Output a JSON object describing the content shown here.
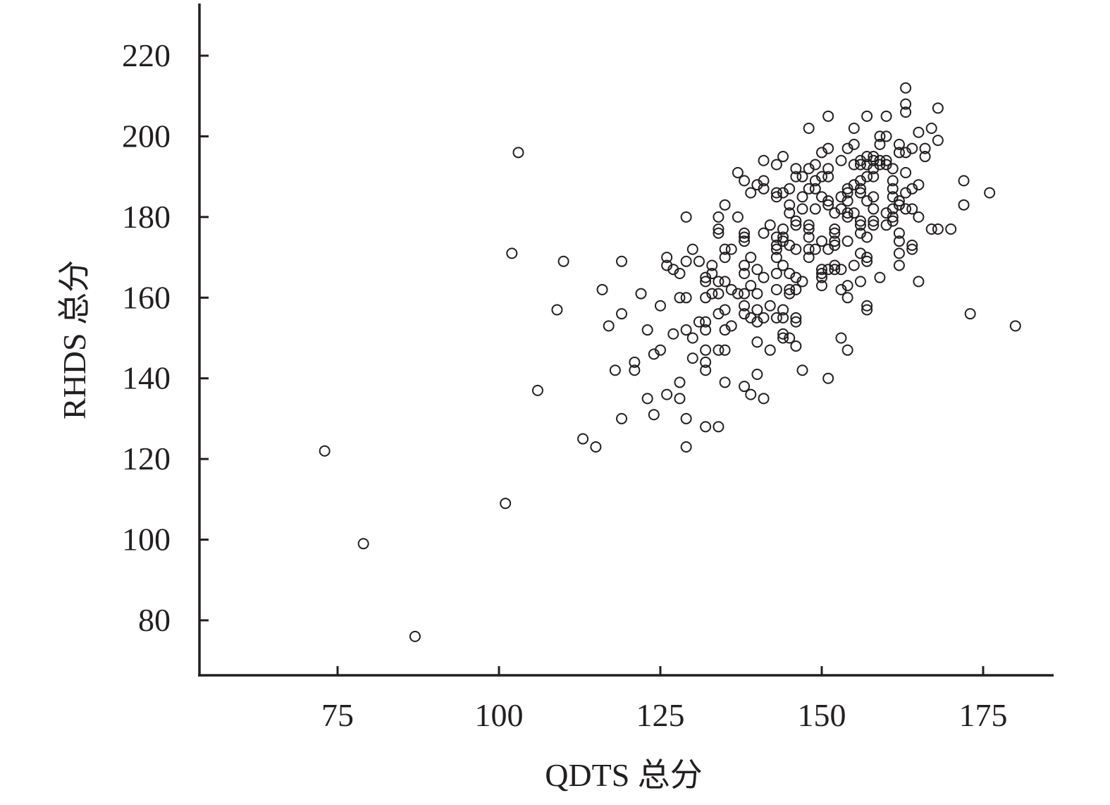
{
  "chart_data": {
    "type": "scatter",
    "title": "",
    "xlabel": "QDTS 总分",
    "ylabel": "RHDS 总分",
    "xlim": [
      53,
      187
    ],
    "ylim": [
      67,
      233
    ],
    "xticks": [
      75,
      100,
      125,
      150,
      175
    ],
    "yticks": [
      80,
      100,
      120,
      140,
      160,
      180,
      200,
      220
    ],
    "grid": false,
    "legend": "none",
    "marker": "open-circle",
    "color": "#231f20",
    "series": [
      {
        "points": [
          [
            73,
            122
          ],
          [
            79,
            99
          ],
          [
            87,
            76
          ],
          [
            101,
            109
          ],
          [
            102,
            171
          ],
          [
            103,
            196
          ],
          [
            106,
            137
          ],
          [
            109,
            157
          ],
          [
            110,
            169
          ],
          [
            113,
            125
          ],
          [
            115,
            123
          ],
          [
            116,
            162
          ],
          [
            117,
            153
          ],
          [
            118,
            142
          ],
          [
            119,
            169
          ],
          [
            119,
            156
          ],
          [
            119,
            130
          ],
          [
            121,
            144
          ],
          [
            121,
            142
          ],
          [
            122,
            161
          ],
          [
            123,
            152
          ],
          [
            123,
            135
          ],
          [
            124,
            146
          ],
          [
            124,
            131
          ],
          [
            125,
            158
          ],
          [
            125,
            147
          ],
          [
            126,
            170
          ],
          [
            126,
            168
          ],
          [
            126,
            136
          ],
          [
            127,
            167
          ],
          [
            127,
            151
          ],
          [
            128,
            166
          ],
          [
            128,
            160
          ],
          [
            128,
            139
          ],
          [
            128,
            135
          ],
          [
            129,
            180
          ],
          [
            129,
            169
          ],
          [
            129,
            160
          ],
          [
            129,
            152
          ],
          [
            129,
            130
          ],
          [
            129,
            123
          ],
          [
            130,
            172
          ],
          [
            130,
            150
          ],
          [
            130,
            145
          ],
          [
            131,
            169
          ],
          [
            131,
            154
          ],
          [
            132,
            165
          ],
          [
            132,
            164
          ],
          [
            132,
            160
          ],
          [
            132,
            154
          ],
          [
            132,
            152
          ],
          [
            132,
            147
          ],
          [
            132,
            144
          ],
          [
            132,
            142
          ],
          [
            132,
            128
          ],
          [
            133,
            168
          ],
          [
            133,
            166
          ],
          [
            133,
            161
          ],
          [
            134,
            180
          ],
          [
            134,
            177
          ],
          [
            134,
            176
          ],
          [
            134,
            164
          ],
          [
            134,
            161
          ],
          [
            134,
            156
          ],
          [
            134,
            147
          ],
          [
            134,
            128
          ],
          [
            135,
            183
          ],
          [
            135,
            172
          ],
          [
            135,
            170
          ],
          [
            135,
            164
          ],
          [
            135,
            157
          ],
          [
            135,
            152
          ],
          [
            135,
            147
          ],
          [
            135,
            139
          ],
          [
            136,
            172
          ],
          [
            136,
            162
          ],
          [
            136,
            153
          ],
          [
            137,
            191
          ],
          [
            137,
            180
          ],
          [
            137,
            161
          ],
          [
            138,
            189
          ],
          [
            138,
            176
          ],
          [
            138,
            175
          ],
          [
            138,
            174
          ],
          [
            138,
            168
          ],
          [
            138,
            166
          ],
          [
            138,
            161
          ],
          [
            138,
            158
          ],
          [
            138,
            156
          ],
          [
            138,
            138
          ],
          [
            139,
            186
          ],
          [
            139,
            170
          ],
          [
            139,
            163
          ],
          [
            139,
            155
          ],
          [
            139,
            136
          ],
          [
            140,
            188
          ],
          [
            140,
            167
          ],
          [
            140,
            161
          ],
          [
            140,
            157
          ],
          [
            140,
            154
          ],
          [
            140,
            149
          ],
          [
            140,
            141
          ],
          [
            141,
            194
          ],
          [
            141,
            189
          ],
          [
            141,
            187
          ],
          [
            141,
            176
          ],
          [
            141,
            165
          ],
          [
            141,
            155
          ],
          [
            141,
            135
          ],
          [
            142,
            178
          ],
          [
            142,
            158
          ],
          [
            142,
            147
          ],
          [
            143,
            193
          ],
          [
            143,
            186
          ],
          [
            143,
            185
          ],
          [
            143,
            175
          ],
          [
            143,
            173
          ],
          [
            143,
            172
          ],
          [
            143,
            170
          ],
          [
            143,
            166
          ],
          [
            143,
            162
          ],
          [
            143,
            155
          ],
          [
            144,
            195
          ],
          [
            144,
            186
          ],
          [
            144,
            177
          ],
          [
            144,
            175
          ],
          [
            144,
            174
          ],
          [
            144,
            168
          ],
          [
            144,
            157
          ],
          [
            144,
            155
          ],
          [
            144,
            151
          ],
          [
            144,
            150
          ],
          [
            145,
            187
          ],
          [
            145,
            183
          ],
          [
            145,
            181
          ],
          [
            145,
            173
          ],
          [
            145,
            166
          ],
          [
            145,
            162
          ],
          [
            145,
            161
          ],
          [
            145,
            150
          ],
          [
            146,
            192
          ],
          [
            146,
            190
          ],
          [
            146,
            179
          ],
          [
            146,
            178
          ],
          [
            146,
            172
          ],
          [
            146,
            165
          ],
          [
            146,
            162
          ],
          [
            146,
            155
          ],
          [
            146,
            154
          ],
          [
            146,
            148
          ],
          [
            147,
            190
          ],
          [
            147,
            185
          ],
          [
            147,
            182
          ],
          [
            147,
            164
          ],
          [
            147,
            142
          ],
          [
            148,
            202
          ],
          [
            148,
            192
          ],
          [
            148,
            187
          ],
          [
            148,
            178
          ],
          [
            148,
            177
          ],
          [
            148,
            175
          ],
          [
            148,
            172
          ],
          [
            148,
            170
          ],
          [
            149,
            193
          ],
          [
            149,
            189
          ],
          [
            149,
            187
          ],
          [
            149,
            182
          ],
          [
            149,
            172
          ],
          [
            150,
            196
          ],
          [
            150,
            190
          ],
          [
            150,
            185
          ],
          [
            150,
            174
          ],
          [
            150,
            167
          ],
          [
            150,
            166
          ],
          [
            150,
            165
          ],
          [
            150,
            163
          ],
          [
            151,
            205
          ],
          [
            151,
            197
          ],
          [
            151,
            192
          ],
          [
            151,
            190
          ],
          [
            151,
            184
          ],
          [
            151,
            183
          ],
          [
            151,
            172
          ],
          [
            151,
            167
          ],
          [
            151,
            140
          ],
          [
            152,
            181
          ],
          [
            152,
            177
          ],
          [
            152,
            176
          ],
          [
            152,
            174
          ],
          [
            152,
            173
          ],
          [
            152,
            168
          ],
          [
            152,
            167
          ],
          [
            153,
            194
          ],
          [
            153,
            185
          ],
          [
            153,
            182
          ],
          [
            153,
            167
          ],
          [
            153,
            162
          ],
          [
            153,
            150
          ],
          [
            154,
            197
          ],
          [
            154,
            187
          ],
          [
            154,
            186
          ],
          [
            154,
            184
          ],
          [
            154,
            181
          ],
          [
            154,
            180
          ],
          [
            154,
            174
          ],
          [
            154,
            163
          ],
          [
            154,
            160
          ],
          [
            154,
            147
          ],
          [
            155,
            202
          ],
          [
            155,
            198
          ],
          [
            155,
            193
          ],
          [
            155,
            188
          ],
          [
            155,
            181
          ],
          [
            155,
            168
          ],
          [
            156,
            194
          ],
          [
            156,
            193
          ],
          [
            156,
            189
          ],
          [
            156,
            187
          ],
          [
            156,
            186
          ],
          [
            156,
            179
          ],
          [
            156,
            178
          ],
          [
            156,
            176
          ],
          [
            156,
            171
          ],
          [
            156,
            164
          ],
          [
            157,
            205
          ],
          [
            157,
            195
          ],
          [
            157,
            193
          ],
          [
            157,
            190
          ],
          [
            157,
            184
          ],
          [
            157,
            175
          ],
          [
            157,
            170
          ],
          [
            157,
            169
          ],
          [
            157,
            158
          ],
          [
            157,
            157
          ],
          [
            158,
            195
          ],
          [
            158,
            194
          ],
          [
            158,
            192
          ],
          [
            158,
            190
          ],
          [
            158,
            185
          ],
          [
            158,
            182
          ],
          [
            158,
            179
          ],
          [
            158,
            178
          ],
          [
            159,
            200
          ],
          [
            159,
            198
          ],
          [
            159,
            194
          ],
          [
            159,
            193
          ],
          [
            159,
            165
          ],
          [
            160,
            205
          ],
          [
            160,
            200
          ],
          [
            160,
            194
          ],
          [
            160,
            193
          ],
          [
            160,
            181
          ],
          [
            160,
            178
          ],
          [
            161,
            192
          ],
          [
            161,
            189
          ],
          [
            161,
            187
          ],
          [
            161,
            185
          ],
          [
            161,
            182
          ],
          [
            161,
            180
          ],
          [
            161,
            179
          ],
          [
            162,
            198
          ],
          [
            162,
            196
          ],
          [
            162,
            184
          ],
          [
            162,
            183
          ],
          [
            162,
            176
          ],
          [
            162,
            174
          ],
          [
            162,
            171
          ],
          [
            162,
            168
          ],
          [
            163,
            212
          ],
          [
            163,
            208
          ],
          [
            163,
            206
          ],
          [
            163,
            196
          ],
          [
            163,
            191
          ],
          [
            163,
            186
          ],
          [
            163,
            182
          ],
          [
            164,
            197
          ],
          [
            164,
            187
          ],
          [
            164,
            182
          ],
          [
            164,
            173
          ],
          [
            164,
            172
          ],
          [
            165,
            201
          ],
          [
            165,
            188
          ],
          [
            165,
            180
          ],
          [
            165,
            164
          ],
          [
            166,
            197
          ],
          [
            166,
            195
          ],
          [
            167,
            202
          ],
          [
            167,
            177
          ],
          [
            168,
            207
          ],
          [
            168,
            199
          ],
          [
            168,
            177
          ],
          [
            170,
            177
          ],
          [
            172,
            189
          ],
          [
            172,
            183
          ],
          [
            173,
            156
          ],
          [
            176,
            186
          ],
          [
            180,
            153
          ]
        ]
      }
    ]
  }
}
